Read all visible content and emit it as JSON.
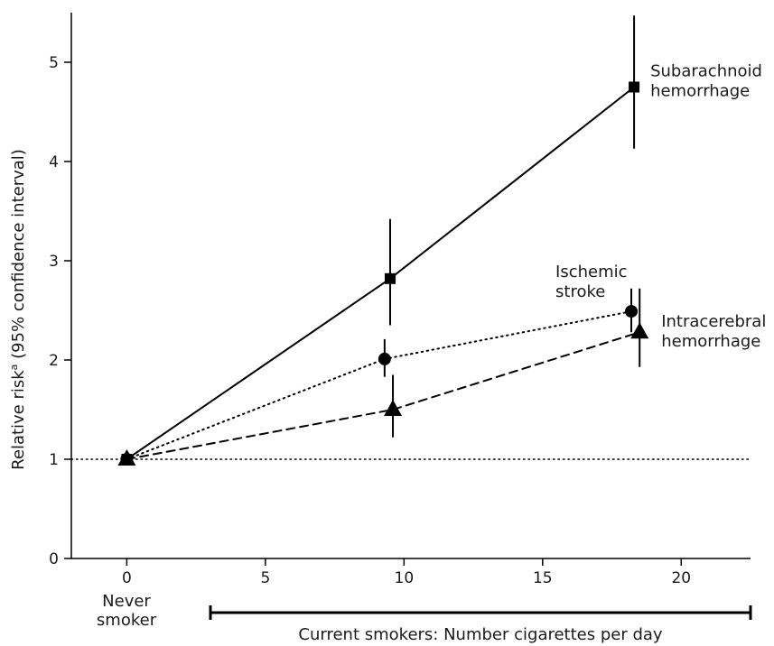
{
  "chart_data": {
    "type": "line",
    "title": "",
    "ylabel": "Relative risk",
    "ylabel_superscript": "a",
    "ylabel_suffix": " (95% confidence interval)",
    "xlabel": "Current smokers: Number cigarettes per day",
    "x_category_label": [
      "Never",
      "smoker"
    ],
    "xlim": [
      -2,
      22.5
    ],
    "ylim": [
      0,
      5.5
    ],
    "xticks": [
      0,
      5,
      10,
      15,
      20
    ],
    "yticks": [
      0,
      1,
      2,
      3,
      4,
      5
    ],
    "grid": false,
    "reference_line": {
      "y": 1,
      "style": "dotted"
    },
    "series": [
      {
        "name": "Subarachnoid hemorrhage",
        "label_lines": [
          "Subarachnoid",
          "hemorrhage"
        ],
        "marker": "square",
        "line_style": "solid",
        "points": [
          {
            "x": 0,
            "y": 1.0,
            "lo": 0.95,
            "hi": 1.05
          },
          {
            "x": 9.5,
            "y": 2.82,
            "lo": 2.35,
            "hi": 3.42
          },
          {
            "x": 18.3,
            "y": 4.75,
            "lo": 4.13,
            "hi": 5.47
          }
        ]
      },
      {
        "name": "Ischemic stroke",
        "label_lines": [
          "Ischemic",
          "stroke"
        ],
        "marker": "circle",
        "line_style": "dotted",
        "points": [
          {
            "x": 0,
            "y": 1.0,
            "lo": 0.95,
            "hi": 1.05
          },
          {
            "x": 9.3,
            "y": 2.01,
            "lo": 1.83,
            "hi": 2.21
          },
          {
            "x": 18.2,
            "y": 2.49,
            "lo": 2.28,
            "hi": 2.72
          }
        ]
      },
      {
        "name": "Intracerebral hemorrhage",
        "label_lines": [
          "Intracerebral",
          "hemorrhage"
        ],
        "marker": "triangle",
        "line_style": "dashed",
        "points": [
          {
            "x": 0,
            "y": 1.0,
            "lo": 0.95,
            "hi": 1.05
          },
          {
            "x": 9.6,
            "y": 1.5,
            "lo": 1.22,
            "hi": 1.85
          },
          {
            "x": 18.5,
            "y": 2.28,
            "lo": 1.93,
            "hi": 2.72
          }
        ]
      }
    ]
  }
}
